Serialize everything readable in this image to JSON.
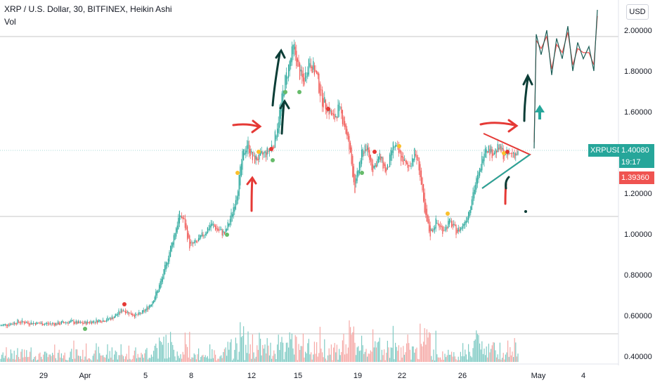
{
  "header": {
    "title": "XRP / U.S. Dollar, 30, BITFINEX, Heikin Ashi",
    "volume_label": "Vol"
  },
  "currency_button": "USD",
  "price_axis": {
    "ticks": [
      "2.00000",
      "1.80000",
      "1.60000",
      "1.40000",
      "1.20000",
      "1.00000",
      "0.80000",
      "0.60000",
      "0.40000"
    ]
  },
  "time_axis": {
    "ticks": [
      "29",
      "Apr",
      "5",
      "8",
      "12",
      "15",
      "19",
      "22",
      "26",
      "May",
      "4"
    ]
  },
  "price_labels": {
    "symbol": "XRPUSD",
    "last_price": "1.40080",
    "countdown": "19:17",
    "prev_price": "1.39360"
  },
  "colors": {
    "up": "#26a69a",
    "down": "#ef5350",
    "teal_label": "#26a69a",
    "red_label": "#ef5350",
    "annotation_dark": "#0b3d36",
    "annotation_red": "#e53935",
    "dot_green": "#66bb6a",
    "dot_yellow": "#fbc02d",
    "dot_red": "#e53935"
  },
  "chart_data": {
    "type": "candlestick",
    "title": "XRP / U.S. Dollar, 30, BITFINEX, Heikin Ashi",
    "ylim": [
      0.38,
      2.12
    ],
    "y_scale": "linear",
    "x_tick_labels": [
      "29",
      "Apr",
      "5",
      "8",
      "12",
      "15",
      "19",
      "22",
      "26",
      "May",
      "4"
    ],
    "price_series": [
      [
        0,
        0.55
      ],
      [
        15,
        0.56
      ],
      [
        25,
        0.57
      ],
      [
        40,
        0.565
      ],
      [
        60,
        0.56
      ],
      [
        80,
        0.56
      ],
      [
        100,
        0.57
      ],
      [
        115,
        0.56
      ],
      [
        130,
        0.57
      ],
      [
        150,
        0.58
      ],
      [
        160,
        0.59
      ],
      [
        175,
        0.63
      ],
      [
        185,
        0.61
      ],
      [
        195,
        0.6
      ],
      [
        205,
        0.62
      ],
      [
        215,
        0.66
      ],
      [
        225,
        0.73
      ],
      [
        232,
        0.8
      ],
      [
        240,
        0.9
      ],
      [
        248,
        1.0
      ],
      [
        256,
        1.1
      ],
      [
        262,
        1.06
      ],
      [
        270,
        0.94
      ],
      [
        280,
        0.96
      ],
      [
        290,
        1.0
      ],
      [
        300,
        1.05
      ],
      [
        310,
        1.02
      ],
      [
        320,
        1.0
      ],
      [
        330,
        1.1
      ],
      [
        338,
        1.22
      ],
      [
        345,
        1.38
      ],
      [
        352,
        1.45
      ],
      [
        360,
        1.36
      ],
      [
        370,
        1.38
      ],
      [
        380,
        1.4
      ],
      [
        390,
        1.45
      ],
      [
        398,
        1.6
      ],
      [
        405,
        1.74
      ],
      [
        412,
        1.84
      ],
      [
        418,
        1.92
      ],
      [
        425,
        1.8
      ],
      [
        432,
        1.74
      ],
      [
        440,
        1.86
      ],
      [
        450,
        1.78
      ],
      [
        458,
        1.66
      ],
      [
        466,
        1.62
      ],
      [
        475,
        1.56
      ],
      [
        482,
        1.62
      ],
      [
        490,
        1.54
      ],
      [
        498,
        1.4
      ],
      [
        505,
        1.22
      ],
      [
        512,
        1.36
      ],
      [
        520,
        1.44
      ],
      [
        530,
        1.32
      ],
      [
        540,
        1.38
      ],
      [
        550,
        1.3
      ],
      [
        560,
        1.44
      ],
      [
        570,
        1.38
      ],
      [
        580,
        1.32
      ],
      [
        590,
        1.4
      ],
      [
        596,
        1.34
      ],
      [
        604,
        1.1
      ],
      [
        612,
        1.0
      ],
      [
        620,
        1.06
      ],
      [
        630,
        1.02
      ],
      [
        640,
        1.06
      ],
      [
        650,
        1.01
      ],
      [
        658,
        1.04
      ],
      [
        666,
        1.1
      ],
      [
        674,
        1.22
      ],
      [
        682,
        1.3
      ],
      [
        690,
        1.44
      ],
      [
        700,
        1.4
      ],
      [
        710,
        1.42
      ],
      [
        720,
        1.38
      ],
      [
        730,
        1.4
      ],
      [
        738,
        1.39
      ]
    ],
    "future_projection": [
      [
        760,
        1.42
      ],
      [
        763,
        1.98
      ],
      [
        770,
        1.88
      ],
      [
        778,
        2.0
      ],
      [
        785,
        1.78
      ],
      [
        792,
        1.96
      ],
      [
        800,
        1.86
      ],
      [
        808,
        2.02
      ],
      [
        815,
        1.8
      ],
      [
        822,
        1.94
      ],
      [
        830,
        1.86
      ],
      [
        838,
        1.92
      ],
      [
        845,
        1.8
      ],
      [
        850,
        2.1
      ]
    ],
    "volume_scale": [
      0,
      1
    ]
  }
}
